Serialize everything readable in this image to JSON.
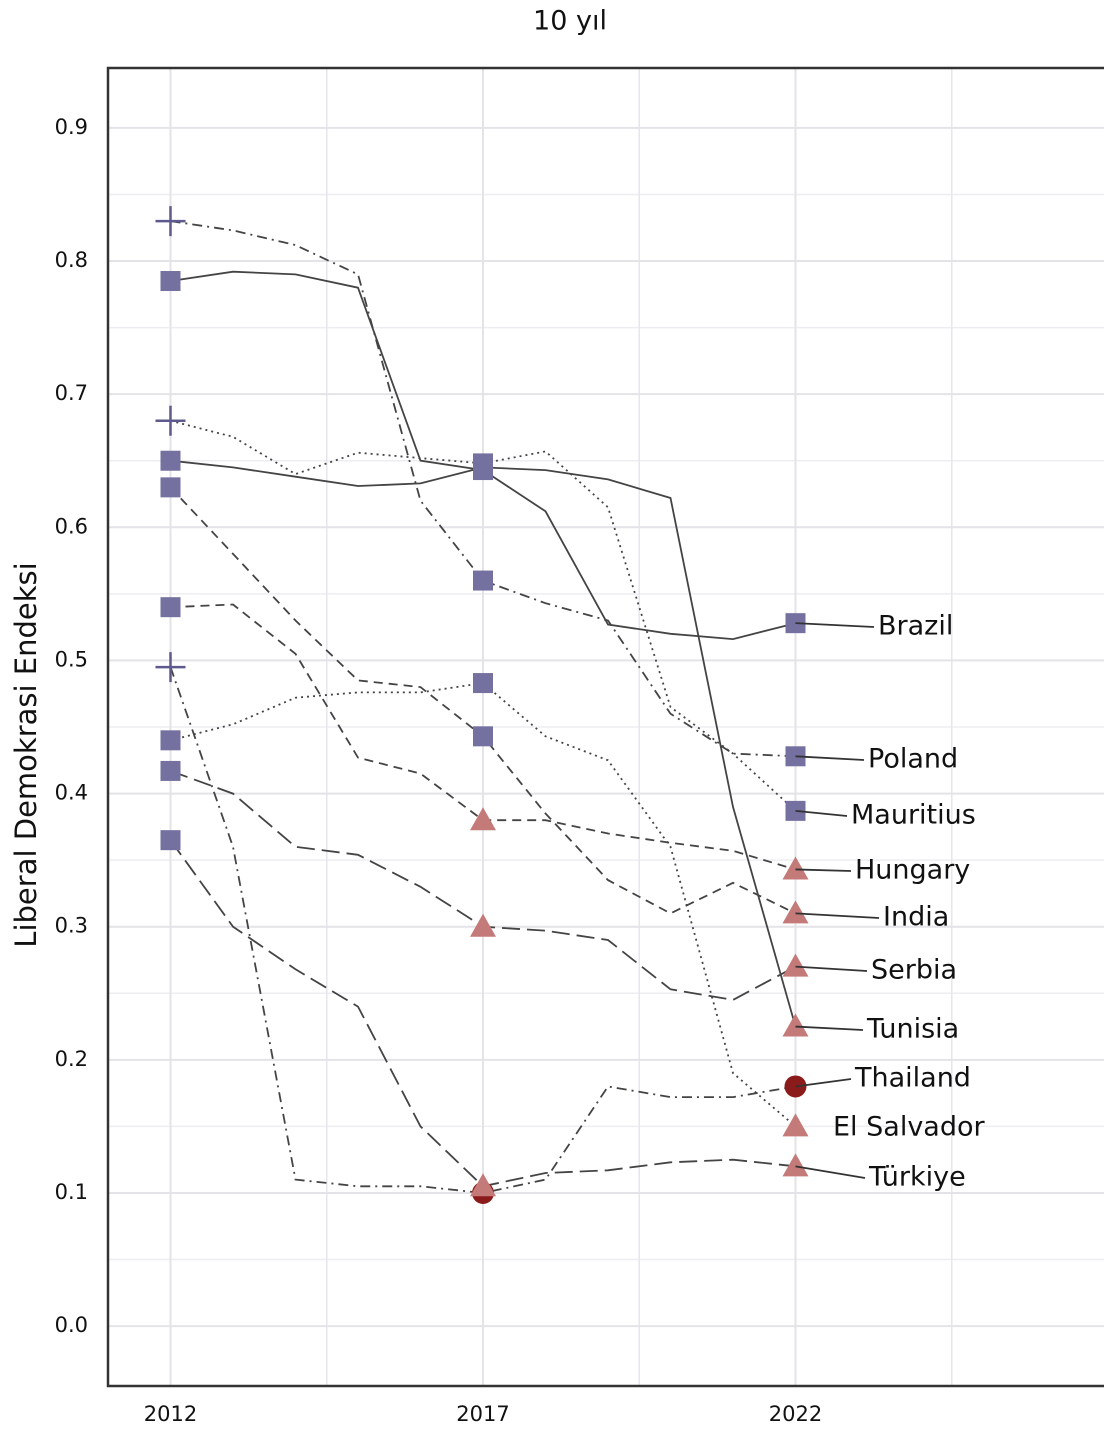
{
  "chart_data": {
    "type": "line",
    "title": "10 yıl",
    "ylabel": "Liberal Demokrasi Endeksi",
    "x": [
      2012,
      2013,
      2014,
      2015,
      2016,
      2017,
      2018,
      2019,
      2020,
      2021,
      2022
    ],
    "xlim": [
      2011,
      2027
    ],
    "xticks": [
      2012,
      2017,
      2022
    ],
    "xminor": [
      2014.5,
      2019.5,
      2024.5
    ],
    "ylim": [
      -0.045,
      0.945
    ],
    "yticks": [
      {
        "value": 0,
        "label": "0.0"
      },
      0.1,
      0.2,
      0.3,
      0.4,
      0.5,
      0.6,
      0.7,
      0.8,
      0.9
    ],
    "yminor": [
      0.05,
      0.15,
      0.25,
      0.35,
      0.45,
      0.55,
      0.65,
      0.75,
      0.85
    ],
    "grid": true,
    "line_color": "#444444",
    "marker_years": [
      2012,
      2017,
      2022
    ],
    "marker_colors": {
      "square": "#7470a0",
      "plus": "#5f5a8e",
      "triangle": "#c47a78",
      "circle": "#8b1a1a"
    },
    "series": [
      {
        "name": "Brazil",
        "linestyle": "solid",
        "markers": [
          "square",
          "square",
          "square"
        ],
        "values": [
          0.785,
          0.792,
          0.79,
          0.78,
          0.65,
          0.643,
          0.612,
          0.527,
          0.52,
          0.516,
          0.528
        ]
      },
      {
        "name": "Poland",
        "linestyle": "dashdot",
        "markers": [
          "plus",
          "square",
          "square"
        ],
        "values": [
          0.83,
          0.823,
          0.812,
          0.79,
          0.62,
          0.56,
          0.543,
          0.53,
          0.46,
          0.43,
          0.428
        ]
      },
      {
        "name": "Mauritius",
        "linestyle": "dotted",
        "markers": [
          "plus",
          "square",
          "square"
        ],
        "values": [
          0.68,
          0.668,
          0.64,
          0.656,
          0.652,
          0.648,
          0.657,
          0.615,
          0.465,
          0.43,
          0.387
        ]
      },
      {
        "name": "Hungary",
        "linestyle": "dashed",
        "markers": [
          "square",
          "triangle",
          "triangle"
        ],
        "values": [
          0.54,
          0.542,
          0.505,
          0.427,
          0.415,
          0.38,
          0.38,
          0.37,
          0.363,
          0.357,
          0.343
        ]
      },
      {
        "name": "India",
        "linestyle": "dashed",
        "markers": [
          "square",
          "square",
          "triangle"
        ],
        "values": [
          0.63,
          0.58,
          0.53,
          0.485,
          0.48,
          0.443,
          0.385,
          0.335,
          0.31,
          0.333,
          0.31
        ]
      },
      {
        "name": "Serbia",
        "linestyle": "longdash",
        "markers": [
          "square",
          "triangle",
          "triangle"
        ],
        "values": [
          0.417,
          0.4,
          0.36,
          0.354,
          0.33,
          0.3,
          0.297,
          0.29,
          0.253,
          0.245,
          0.27
        ]
      },
      {
        "name": "Tunisia",
        "linestyle": "solid",
        "markers": [
          "square",
          "square",
          "triangle"
        ],
        "values": [
          0.65,
          0.645,
          0.638,
          0.631,
          0.633,
          0.645,
          0.643,
          0.636,
          0.622,
          0.39,
          0.225
        ]
      },
      {
        "name": "Thailand",
        "linestyle": "dashdot",
        "markers": [
          "plus",
          "circle",
          "circle"
        ],
        "values": [
          0.495,
          0.36,
          0.11,
          0.105,
          0.105,
          0.1,
          0.11,
          0.18,
          0.172,
          0.172,
          0.18
        ]
      },
      {
        "name": "El Salvador",
        "linestyle": "dotted",
        "markers": [
          "square",
          "square",
          "triangle"
        ],
        "values": [
          0.44,
          0.452,
          0.472,
          0.476,
          0.476,
          0.483,
          0.443,
          0.425,
          0.36,
          0.19,
          0.15
        ]
      },
      {
        "name": "Türkiye",
        "linestyle": "longdash",
        "markers": [
          "square",
          "triangle",
          "triangle"
        ],
        "values": [
          0.365,
          0.3,
          0.268,
          0.24,
          0.15,
          0.105,
          0.115,
          0.117,
          0.123,
          0.125,
          0.12
        ]
      }
    ]
  }
}
